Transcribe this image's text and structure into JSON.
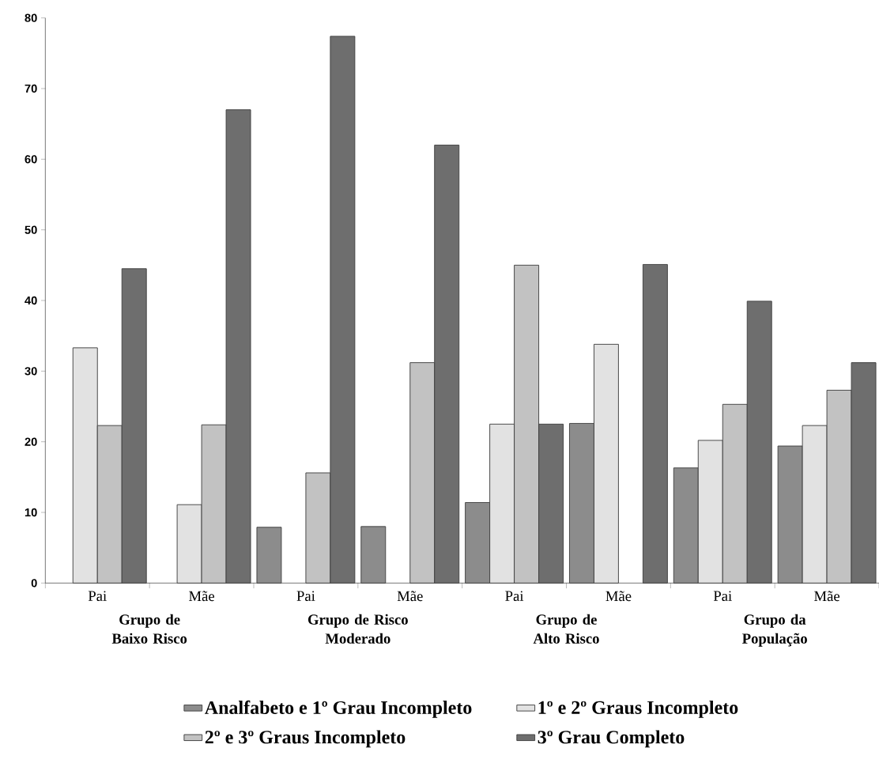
{
  "chart_data": {
    "type": "bar",
    "categories": [
      "Pai",
      "Mãe",
      "Pai",
      "Mãe",
      "Pai",
      "Mãe",
      "Pai",
      "Mãe"
    ],
    "series": [
      {
        "name": "Analfabeto e 1º Grau Incompleto",
        "color": "#8c8c8c",
        "values": [
          null,
          null,
          7.9,
          8.0,
          11.4,
          22.6,
          16.3,
          19.4
        ]
      },
      {
        "name": "1º  e 2º Graus Incompleto",
        "color": "#e2e2e2",
        "values": [
          33.3,
          11.1,
          null,
          null,
          22.5,
          33.8,
          20.2,
          22.3
        ]
      },
      {
        "name": "2º e 3º Graus Incompleto",
        "color": "#c2c2c2",
        "values": [
          22.3,
          22.4,
          15.6,
          31.2,
          45.0,
          null,
          25.3,
          27.3
        ]
      },
      {
        "name": "3º Grau Completo",
        "color": "#6e6e6e",
        "values": [
          44.5,
          67.0,
          77.4,
          62.0,
          22.5,
          45.1,
          39.9,
          31.2
        ]
      }
    ],
    "annotations": [
      "Grupo de Baixo Risco",
      "Grupo de Risco Moderado",
      "Grupo de Alto Risco",
      "Grupo da População"
    ],
    "ylim": [
      0,
      80
    ],
    "yticks": [
      0,
      10,
      20,
      30,
      40,
      50,
      60,
      70,
      80
    ],
    "grid": false,
    "legend": "bottom"
  }
}
